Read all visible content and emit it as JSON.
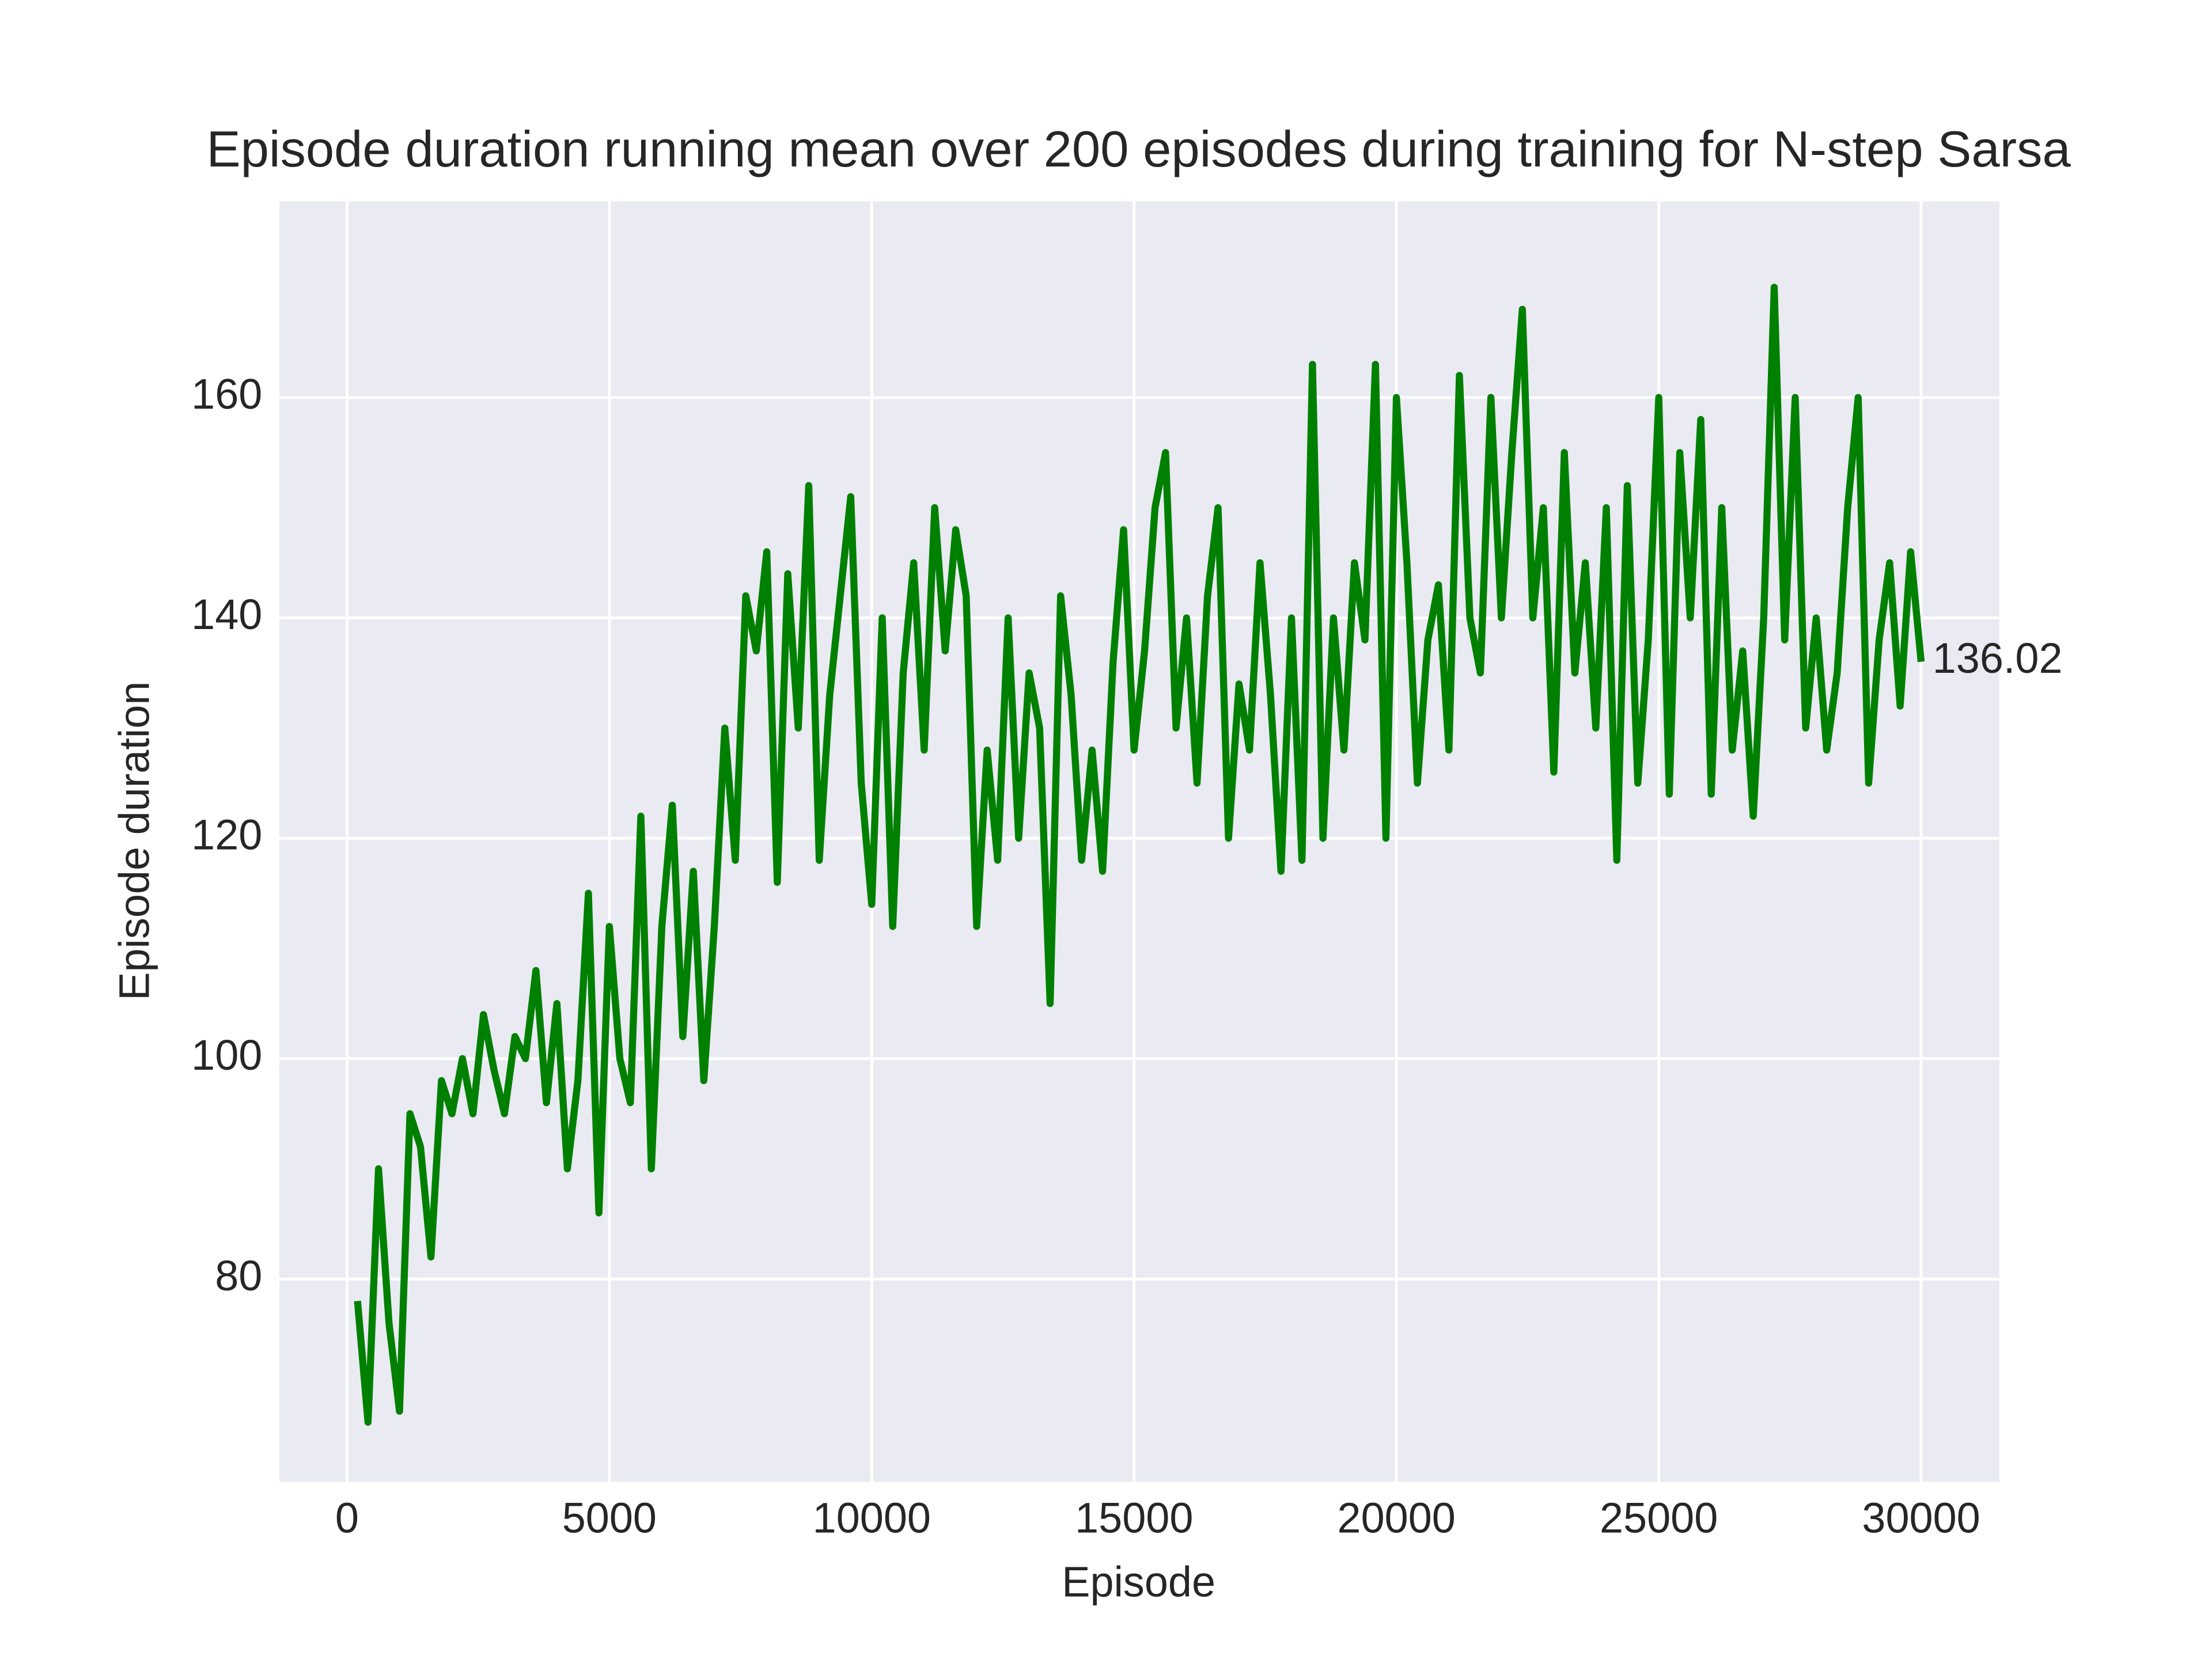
{
  "chart_data": {
    "type": "line",
    "title": "Episode duration running mean over 200 episodes during training for N-step Sarsa",
    "xlabel": "Episode",
    "ylabel": "Episode duration",
    "x": [
      200,
      400,
      600,
      800,
      1000,
      1200,
      1400,
      1600,
      1800,
      2000,
      2200,
      2400,
      2600,
      2800,
      3000,
      3200,
      3400,
      3600,
      3800,
      4000,
      4200,
      4400,
      4600,
      4800,
      5000,
      5200,
      5400,
      5600,
      5800,
      6000,
      6200,
      6400,
      6600,
      6800,
      7000,
      7200,
      7400,
      7600,
      7800,
      8000,
      8200,
      8400,
      8600,
      8800,
      9000,
      9200,
      9400,
      9600,
      9800,
      10000,
      10200,
      10400,
      10600,
      10800,
      11000,
      11200,
      11400,
      11600,
      11800,
      12000,
      12200,
      12400,
      12600,
      12800,
      13000,
      13200,
      13400,
      13600,
      13800,
      14000,
      14200,
      14400,
      14600,
      14800,
      15000,
      15200,
      15400,
      15600,
      15800,
      16000,
      16200,
      16400,
      16600,
      16800,
      17000,
      17200,
      17400,
      17600,
      17800,
      18000,
      18200,
      18400,
      18600,
      18800,
      19000,
      19200,
      19400,
      19600,
      19800,
      20000,
      20200,
      20400,
      20600,
      20800,
      21000,
      21200,
      21400,
      21600,
      21800,
      22000,
      22200,
      22400,
      22600,
      22800,
      23000,
      23200,
      23400,
      23600,
      23800,
      24000,
      24200,
      24400,
      24600,
      24800,
      25000,
      25200,
      25400,
      25600,
      25800,
      26000,
      26200,
      26400,
      26600,
      26800,
      27000,
      27200,
      27400,
      27600,
      27800,
      28000,
      28200,
      28400,
      28600,
      28800,
      29000,
      29200,
      29400,
      29600,
      29800,
      30000
    ],
    "series": [
      {
        "name": "N-step Sarsa",
        "color": "#008000",
        "values": [
          78,
          67,
          90,
          76,
          68,
          95,
          92,
          82,
          98,
          95,
          100,
          95,
          104,
          99,
          95,
          102,
          100,
          108,
          96,
          105,
          90,
          98,
          115,
          86,
          112,
          100,
          96,
          122,
          90,
          112,
          123,
          102,
          117,
          98,
          112,
          130,
          118,
          142,
          137,
          146,
          116,
          144,
          130,
          152,
          118,
          133,
          142,
          151,
          125,
          114,
          140,
          112,
          135,
          145,
          128,
          150,
          137,
          148,
          142,
          112,
          128,
          118,
          140,
          120,
          135,
          130,
          105,
          142,
          133,
          118,
          128,
          117,
          136,
          148,
          128,
          137,
          150,
          155,
          130,
          140,
          125,
          142,
          150,
          120,
          134,
          128,
          145,
          133,
          117,
          140,
          118,
          163,
          120,
          140,
          128,
          145,
          138,
          163,
          120,
          160,
          145,
          125,
          138,
          143,
          128,
          162,
          140,
          135,
          160,
          140,
          155,
          168,
          140,
          150,
          126,
          155,
          135,
          145,
          130,
          150,
          118,
          152,
          125,
          138,
          160,
          124,
          155,
          140,
          158,
          124,
          150,
          128,
          137,
          122,
          140,
          170,
          138,
          160,
          130,
          140,
          128,
          135,
          150,
          160,
          125,
          138,
          145,
          132,
          146,
          136.02
        ]
      }
    ],
    "annotation": "136.02",
    "xlim": [
      -1290,
      31490
    ],
    "ylim": [
      61.6,
      177.8
    ],
    "xticks": [
      0,
      5000,
      10000,
      15000,
      20000,
      25000,
      30000
    ],
    "yticks": [
      80,
      100,
      120,
      140,
      160
    ],
    "grid": true,
    "background": "#eaeaf2"
  }
}
